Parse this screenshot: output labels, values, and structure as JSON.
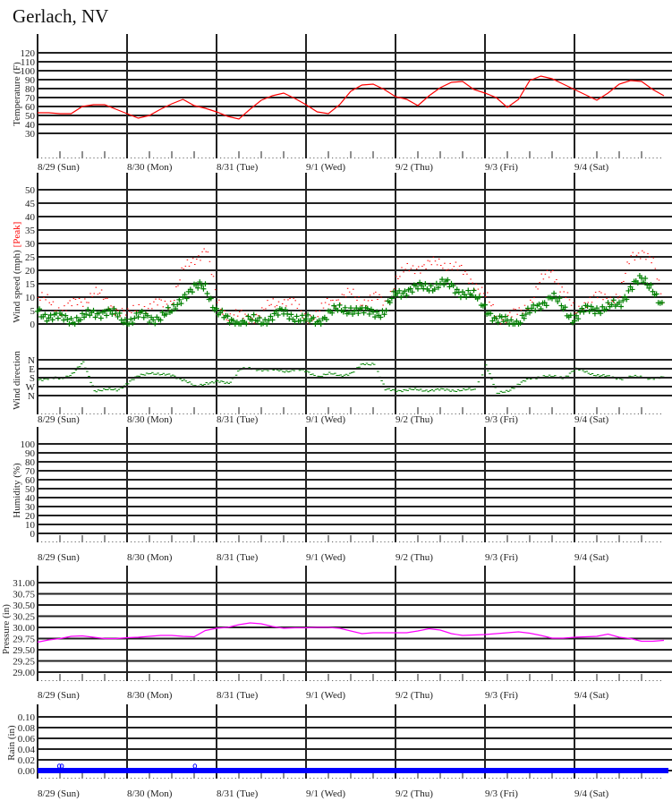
{
  "title": "Gerlach, NV",
  "colors": {
    "grid": "#222222",
    "temperature": "#ff0000",
    "wind_avg": "#008000",
    "wind_peak": "#ff0000",
    "wind_direction": "#008000",
    "pressure": "#ff00ff",
    "rain": "#0000ff"
  },
  "chart_data": [
    {
      "type": "line",
      "ylabel": "Temperature (F)",
      "yticks": [
        "30",
        "40",
        "50",
        "60",
        "70",
        "80",
        "90",
        "100",
        "110",
        "120"
      ],
      "ylim": [
        30,
        120
      ],
      "grid": true,
      "x_labels": [
        "8/29 (Sun)",
        "8/30 (Mon)",
        "8/31 (Tue)",
        "9/1 (Wed)",
        "9/2 (Thu)",
        "9/3 (Fri)",
        "9/4 (Sat)"
      ],
      "x_step_hours": 3,
      "values": [
        53,
        53,
        52,
        52,
        60,
        62,
        62,
        57,
        52,
        47,
        50,
        57,
        63,
        68,
        61,
        58,
        54,
        49,
        46,
        57,
        67,
        72,
        75,
        69,
        62,
        54,
        52,
        62,
        77,
        84,
        85,
        79,
        71,
        68,
        61,
        72,
        81,
        87,
        88,
        79,
        75,
        70,
        59,
        68,
        89,
        94,
        91,
        85,
        79,
        73,
        67,
        75,
        85,
        89,
        88,
        79,
        72
      ]
    },
    {
      "type": "scatter",
      "ylabel": "Wind speed (mph)",
      "peak_label": "[Peak]",
      "yticks": [
        "0",
        "5",
        "10",
        "15",
        "20",
        "25",
        "30",
        "35",
        "40",
        "45",
        "50"
      ],
      "ylim": [
        0,
        50
      ],
      "grid": true,
      "x_step_hours": 3,
      "series": [
        {
          "name": "Wind speed",
          "values": [
            5,
            3,
            2,
            2,
            2,
            4,
            5,
            3,
            1,
            3,
            2,
            3,
            4,
            11,
            13,
            14,
            5,
            1,
            1,
            1,
            1,
            3,
            4,
            3,
            1,
            1,
            4,
            5,
            6,
            4,
            5,
            4,
            11,
            13,
            13,
            14,
            15,
            14,
            12,
            10,
            7,
            1,
            1,
            1,
            4,
            8,
            10,
            6,
            2,
            5,
            6,
            6,
            7,
            14,
            16,
            14,
            5
          ]
        },
        {
          "name": "Peak",
          "values": [
            10,
            8,
            6,
            7,
            9,
            12,
            9,
            6,
            3,
            7,
            6,
            8,
            9,
            20,
            25,
            28,
            9,
            3,
            3,
            3,
            4,
            8,
            9,
            7,
            3,
            3,
            9,
            10,
            11,
            9,
            10,
            8,
            17,
            20,
            22,
            22,
            23,
            22,
            19,
            16,
            10,
            3,
            3,
            4,
            9,
            16,
            20,
            12,
            4,
            9,
            10,
            10,
            11,
            25,
            28,
            22,
            7
          ]
        }
      ]
    },
    {
      "type": "scatter",
      "ylabel": "Wind direction",
      "yticks": [
        "N",
        "E",
        "S",
        "W",
        "N"
      ],
      "ylim_degrees": [
        0,
        360
      ],
      "grid": true,
      "x_labels": [
        "8/29 (Sun)",
        "8/30 (Mon)",
        "8/31 (Tue)",
        "9/1 (Wed)",
        "9/2 (Thu)",
        "9/3 (Fri)",
        "9/4 (Sat)"
      ],
      "x_step_hours": 3,
      "values": [
        190,
        185,
        185,
        135,
        30,
        300,
        300,
        300,
        225,
        160,
        120,
        150,
        150,
        200,
        270,
        225,
        220,
        230,
        90,
        90,
        90,
        100,
        110,
        90,
        120,
        160,
        140,
        150,
        130,
        40,
        30,
        300,
        300,
        300,
        300,
        300,
        300,
        300,
        300,
        300,
        45,
        340,
        300,
        240,
        180,
        160,
        170,
        170,
        90,
        120,
        150,
        170,
        180,
        170,
        170,
        180,
        180
      ]
    },
    {
      "type": "line",
      "ylabel": "Humidity (%)",
      "yticks": [
        "0",
        "10",
        "20",
        "30",
        "40",
        "50",
        "60",
        "70",
        "80",
        "90",
        "100"
      ],
      "ylim": [
        0,
        100
      ],
      "grid": true,
      "x_labels": [
        "8/29 (Sun)",
        "8/30 (Mon)",
        "8/31 (Tue)",
        "9/1 (Wed)",
        "9/2 (Thu)",
        "9/3 (Fri)",
        "9/4 (Sat)"
      ],
      "values": []
    },
    {
      "type": "line",
      "ylabel": "Pressure (in)",
      "yticks": [
        "29.00",
        "29.25",
        "29.50",
        "29.75",
        "30.00",
        "30.25",
        "30.50",
        "30.75",
        "31.00"
      ],
      "ylim": [
        29.0,
        31.0
      ],
      "grid": true,
      "x_labels": [
        "8/29 (Sun)",
        "8/30 (Mon)",
        "8/31 (Tue)",
        "9/1 (Wed)",
        "9/2 (Thu)",
        "9/3 (Fri)",
        "9/4 (Sat)"
      ],
      "x_step_hours": 3,
      "values": [
        29.67,
        29.72,
        29.75,
        29.8,
        29.81,
        29.78,
        29.75,
        29.75,
        29.77,
        29.78,
        29.8,
        29.82,
        29.82,
        29.8,
        29.79,
        29.93,
        29.98,
        30.0,
        30.06,
        30.1,
        30.08,
        30.02,
        29.98,
        29.99,
        29.99,
        30.0,
        30.0,
        29.98,
        29.92,
        29.86,
        29.88,
        29.88,
        29.88,
        29.88,
        29.92,
        29.97,
        29.94,
        29.86,
        29.82,
        29.83,
        29.84,
        29.86,
        29.88,
        29.9,
        29.87,
        29.82,
        29.76,
        29.76,
        29.78,
        29.79,
        29.8,
        29.85,
        29.78,
        29.75,
        29.69,
        29.69,
        29.71
      ]
    },
    {
      "type": "scatter",
      "ylabel": "Rain (in)",
      "yticks": [
        "0.00",
        "0.02",
        "0.04",
        "0.06",
        "0.08",
        "0.10"
      ],
      "ylim": [
        0,
        0.1
      ],
      "grid": true,
      "x_labels": [
        "8/29 (Sun)",
        "8/30 (Mon)",
        "8/31 (Tue)",
        "9/1 (Wed)",
        "9/2 (Thu)",
        "9/3 (Fri)",
        "9/4 (Sat)"
      ],
      "baseline_value": 0.0,
      "points": [
        {
          "day": "8/29",
          "hour": 5.8,
          "value": 0.01
        },
        {
          "day": "8/29",
          "hour": 6.5,
          "value": 0.01
        },
        {
          "day": "8/30",
          "hour": 18.2,
          "value": 0.01
        }
      ]
    }
  ]
}
